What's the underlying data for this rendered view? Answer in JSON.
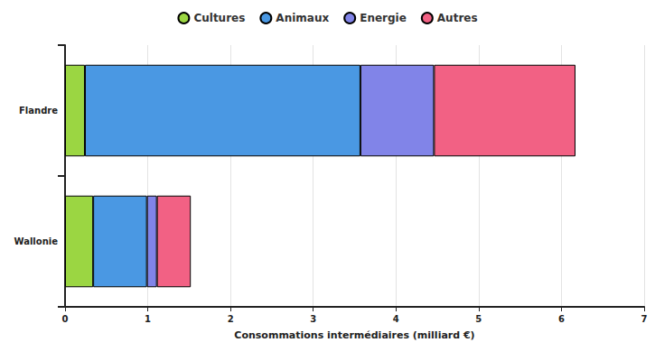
{
  "chart_data": {
    "type": "bar",
    "orientation": "horizontal",
    "stacked": true,
    "categories": [
      "Flandre",
      "Wallonie"
    ],
    "series": [
      {
        "name": "Cultures",
        "color": "#9bd642",
        "values": [
          0.24,
          0.34
        ]
      },
      {
        "name": "Animaux",
        "color": "#4a98e3",
        "values": [
          3.33,
          0.65
        ]
      },
      {
        "name": "Energie",
        "color": "#8184e8",
        "values": [
          0.89,
          0.12
        ]
      },
      {
        "name": "Autres",
        "color": "#f26184",
        "values": [
          1.71,
          0.41
        ]
      }
    ],
    "x_label": "Consommations intermédiaires (milliard €)",
    "xlim": [
      0,
      7
    ],
    "xticks": [
      0,
      1,
      2,
      3,
      4,
      5,
      6,
      7
    ],
    "grid": true,
    "legend": "top"
  }
}
